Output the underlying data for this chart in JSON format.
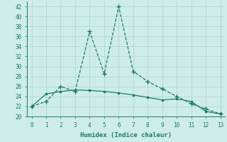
{
  "x": [
    0,
    1,
    2,
    3,
    4,
    5,
    6,
    7,
    8,
    9,
    10,
    11,
    12,
    13
  ],
  "line1": [
    22,
    23,
    26,
    25,
    37,
    28.5,
    42,
    29,
    27,
    25.5,
    24,
    22.5,
    21.5,
    20.5
  ],
  "line2": [
    22,
    24.5,
    25,
    25.3,
    25.2,
    25,
    24.7,
    24.3,
    23.8,
    23.3,
    23.5,
    23,
    21,
    20.5
  ],
  "line_color": "#1a7a6a",
  "bg_color": "#ceecea",
  "grid_color": "#b0d8d4",
  "xlabel": "Humidex (Indice chaleur)",
  "ylim": [
    20,
    43
  ],
  "xlim": [
    -0.3,
    13.3
  ],
  "yticks": [
    20,
    22,
    24,
    26,
    28,
    30,
    32,
    34,
    36,
    38,
    40,
    42
  ],
  "xticks": [
    0,
    1,
    2,
    3,
    4,
    5,
    6,
    7,
    8,
    9,
    10,
    11,
    12,
    13
  ]
}
